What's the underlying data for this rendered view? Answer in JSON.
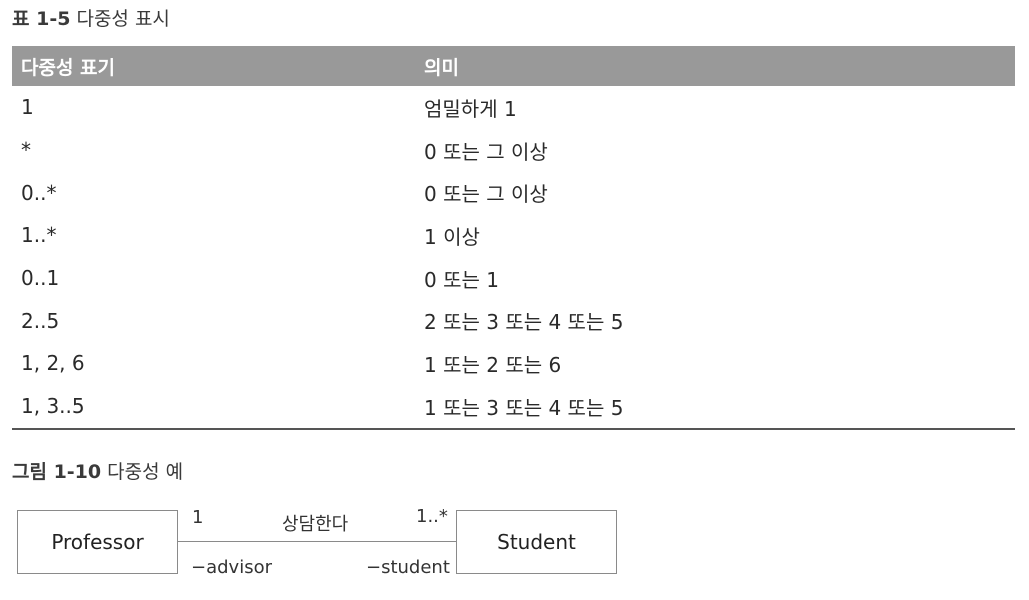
{
  "table": {
    "caption_num": "표 1-5",
    "caption_title": "다중성 표시",
    "headers": [
      "다중성 표기",
      "의미"
    ],
    "rows": [
      [
        "1",
        "엄밀하게 1"
      ],
      [
        "*",
        "0 또는 그 이상"
      ],
      [
        "0..*",
        "0 또는 그 이상"
      ],
      [
        "1..*",
        "1 이상"
      ],
      [
        "0..1",
        "0 또는 1"
      ],
      [
        "2..5",
        "2 또는 3 또는 4 또는 5"
      ],
      [
        "1, 2, 6",
        "1 또는 2 또는 6"
      ],
      [
        "1, 3..5",
        "1 또는 3 또는 4 또는 5"
      ]
    ]
  },
  "figure": {
    "caption_num": "그림 1-10",
    "caption_title": "다중성 예",
    "left_class": "Professor",
    "right_class": "Student",
    "association_name": "상담한다",
    "left_multiplicity": "1",
    "right_multiplicity": "1..*",
    "left_role": "−advisor",
    "right_role": "−student"
  }
}
